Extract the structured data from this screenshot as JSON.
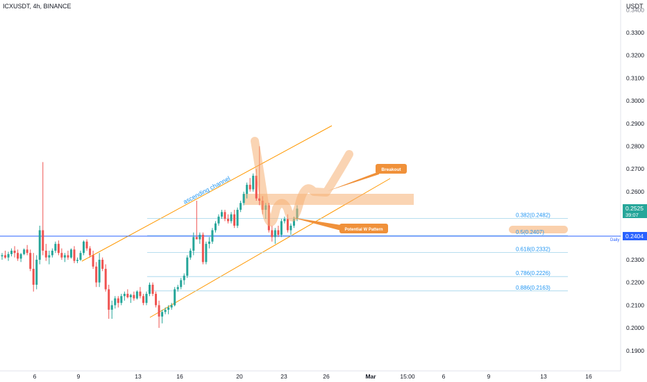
{
  "header": {
    "symbol_line": "ICXUSDT, 4h, BINANCE"
  },
  "price_axis": {
    "unit": "USDT",
    "ticks": [
      "0.3300",
      "0.3200",
      "0.3100",
      "0.3000",
      "0.2900",
      "0.2800",
      "0.2700",
      "0.2600",
      "0.2500",
      "0.2400",
      "0.2300",
      "0.2200",
      "0.2100",
      "0.2000",
      "0.1900"
    ],
    "top_cut_label": "0.3400"
  },
  "time_axis": {
    "labels": [
      "6",
      "9",
      "13",
      "16",
      "20",
      "23",
      "26",
      "Mar",
      "15:00",
      "6",
      "9",
      "13",
      "16"
    ]
  },
  "chart_data": {
    "type": "candlestick",
    "symbol": "ICXUSDT",
    "interval": "4h",
    "exchange": "BINANCE",
    "ylim": [
      0.181,
      0.344
    ],
    "last_price": {
      "value": "0.2525",
      "countdown": "39:07",
      "color": "#26a69a"
    },
    "level_line": {
      "value": "0.2404",
      "label": "Daily",
      "color": "#2962ff"
    },
    "fib_levels": [
      {
        "label": "0.382(0.2482)",
        "value": 0.2482
      },
      {
        "label": "0.5(0.2407)",
        "value": 0.2407,
        "highlighted": true
      },
      {
        "label": "0.618(0.2332)",
        "value": 0.2332
      },
      {
        "label": "0.786(0.2226)",
        "value": 0.2226
      },
      {
        "label": "0.886(0.2163)",
        "value": 0.2163
      }
    ],
    "annotations": {
      "channel_label": "ascending channel",
      "breakout_label": "Breakout",
      "pattern_label": "Potential W Pattern"
    },
    "candles": [
      [
        0.2315,
        0.233,
        0.23,
        0.232
      ],
      [
        0.232,
        0.234,
        0.2305,
        0.231
      ],
      [
        0.231,
        0.2335,
        0.2295,
        0.2325
      ],
      [
        0.2325,
        0.235,
        0.2315,
        0.234
      ],
      [
        0.234,
        0.236,
        0.231,
        0.233
      ],
      [
        0.233,
        0.2345,
        0.2295,
        0.2305
      ],
      [
        0.2305,
        0.233,
        0.229,
        0.2325
      ],
      [
        0.2325,
        0.235,
        0.232,
        0.2345
      ],
      [
        0.2345,
        0.2365,
        0.232,
        0.233
      ],
      [
        0.233,
        0.2345,
        0.225,
        0.226
      ],
      [
        0.226,
        0.233,
        0.216,
        0.219
      ],
      [
        0.219,
        0.232,
        0.217,
        0.23
      ],
      [
        0.23,
        0.245,
        0.228,
        0.243
      ],
      [
        0.243,
        0.273,
        0.232,
        0.234
      ],
      [
        0.234,
        0.237,
        0.2295,
        0.231
      ],
      [
        0.231,
        0.234,
        0.228,
        0.232
      ],
      [
        0.232,
        0.235,
        0.231,
        0.234
      ],
      [
        0.234,
        0.238,
        0.233,
        0.237
      ],
      [
        0.237,
        0.2385,
        0.232,
        0.233
      ],
      [
        0.233,
        0.235,
        0.23,
        0.231
      ],
      [
        0.231,
        0.233,
        0.229,
        0.232
      ],
      [
        0.232,
        0.234,
        0.23,
        0.231
      ],
      [
        0.231,
        0.235,
        0.2305,
        0.2345
      ],
      [
        0.2345,
        0.236,
        0.2285,
        0.2295
      ],
      [
        0.2295,
        0.231,
        0.2285,
        0.23
      ],
      [
        0.23,
        0.234,
        0.2295,
        0.233
      ],
      [
        0.233,
        0.2385,
        0.232,
        0.238
      ],
      [
        0.238,
        0.239,
        0.234,
        0.235
      ],
      [
        0.235,
        0.236,
        0.231,
        0.232
      ],
      [
        0.232,
        0.234,
        0.226,
        0.227
      ],
      [
        0.227,
        0.229,
        0.218,
        0.22
      ],
      [
        0.22,
        0.233,
        0.218,
        0.23
      ],
      [
        0.23,
        0.231,
        0.225,
        0.226
      ],
      [
        0.226,
        0.228,
        0.216,
        0.217
      ],
      [
        0.217,
        0.219,
        0.204,
        0.208
      ],
      [
        0.208,
        0.212,
        0.204,
        0.21
      ],
      [
        0.21,
        0.214,
        0.2085,
        0.213
      ],
      [
        0.213,
        0.214,
        0.209,
        0.211
      ],
      [
        0.211,
        0.215,
        0.21,
        0.214
      ],
      [
        0.214,
        0.216,
        0.212,
        0.215
      ],
      [
        0.215,
        0.217,
        0.213,
        0.2135
      ],
      [
        0.2135,
        0.215,
        0.211,
        0.2145
      ],
      [
        0.2145,
        0.216,
        0.212,
        0.213
      ],
      [
        0.213,
        0.2165,
        0.2125,
        0.216
      ],
      [
        0.216,
        0.218,
        0.213,
        0.214
      ],
      [
        0.214,
        0.215,
        0.21,
        0.211
      ],
      [
        0.211,
        0.216,
        0.21,
        0.215
      ],
      [
        0.215,
        0.22,
        0.214,
        0.219
      ],
      [
        0.219,
        0.22,
        0.214,
        0.215
      ],
      [
        0.215,
        0.216,
        0.209,
        0.21
      ],
      [
        0.21,
        0.212,
        0.2,
        0.205
      ],
      [
        0.205,
        0.208,
        0.202,
        0.207
      ],
      [
        0.207,
        0.209,
        0.206,
        0.208
      ],
      [
        0.208,
        0.21,
        0.206,
        0.209
      ],
      [
        0.209,
        0.211,
        0.208,
        0.21
      ],
      [
        0.21,
        0.218,
        0.2095,
        0.217
      ],
      [
        0.217,
        0.219,
        0.216,
        0.218
      ],
      [
        0.218,
        0.222,
        0.217,
        0.221
      ],
      [
        0.221,
        0.224,
        0.219,
        0.223
      ],
      [
        0.223,
        0.232,
        0.222,
        0.231
      ],
      [
        0.231,
        0.235,
        0.23,
        0.234
      ],
      [
        0.234,
        0.242,
        0.232,
        0.24
      ],
      [
        0.24,
        0.256,
        0.239,
        0.239
      ],
      [
        0.239,
        0.242,
        0.237,
        0.241
      ],
      [
        0.241,
        0.242,
        0.228,
        0.229
      ],
      [
        0.229,
        0.238,
        0.228,
        0.237
      ],
      [
        0.237,
        0.24,
        0.235,
        0.238
      ],
      [
        0.238,
        0.244,
        0.237,
        0.243
      ],
      [
        0.243,
        0.247,
        0.242,
        0.246
      ],
      [
        0.246,
        0.25,
        0.245,
        0.249
      ],
      [
        0.249,
        0.252,
        0.248,
        0.251
      ],
      [
        0.251,
        0.252,
        0.247,
        0.248
      ],
      [
        0.248,
        0.25,
        0.246,
        0.247
      ],
      [
        0.247,
        0.251,
        0.246,
        0.25
      ],
      [
        0.25,
        0.252,
        0.244,
        0.245
      ],
      [
        0.245,
        0.253,
        0.244,
        0.252
      ],
      [
        0.252,
        0.256,
        0.251,
        0.255
      ],
      [
        0.255,
        0.26,
        0.254,
        0.259
      ],
      [
        0.259,
        0.264,
        0.257,
        0.263
      ],
      [
        0.263,
        0.266,
        0.26,
        0.261
      ],
      [
        0.261,
        0.268,
        0.26,
        0.267
      ],
      [
        0.267,
        0.27,
        0.256,
        0.257
      ],
      [
        0.257,
        0.28,
        0.254,
        0.256
      ],
      [
        0.256,
        0.258,
        0.25,
        0.252
      ],
      [
        0.252,
        0.255,
        0.248,
        0.254
      ],
      [
        0.254,
        0.255,
        0.242,
        0.243
      ],
      [
        0.243,
        0.245,
        0.238,
        0.24
      ],
      [
        0.24,
        0.244,
        0.237,
        0.243
      ],
      [
        0.243,
        0.245,
        0.24,
        0.241
      ],
      [
        0.241,
        0.248,
        0.24,
        0.247
      ],
      [
        0.247,
        0.249,
        0.246,
        0.248
      ],
      [
        0.248,
        0.25,
        0.242,
        0.243
      ],
      [
        0.243,
        0.246,
        0.241,
        0.245
      ],
      [
        0.245,
        0.249,
        0.244,
        0.248
      ],
      [
        0.248,
        0.254,
        0.247,
        0.2525
      ]
    ]
  }
}
